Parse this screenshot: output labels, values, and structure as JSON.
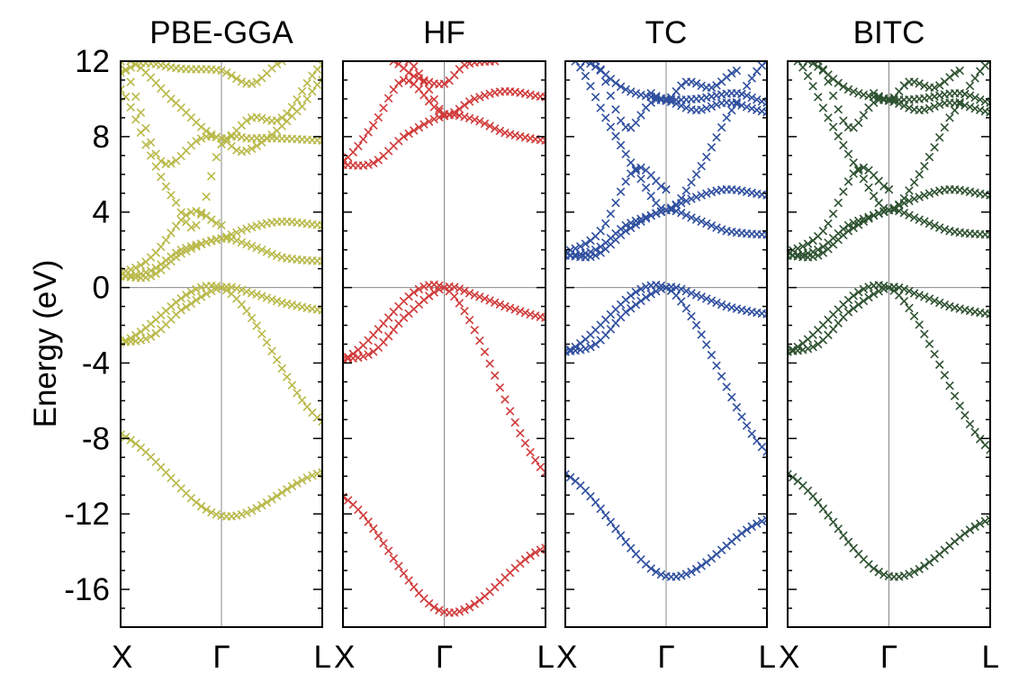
{
  "chart_data": {
    "type": "scatter",
    "description_kind": "band structure",
    "ylabel": "Energy (eV)",
    "ylim": [
      -18,
      12
    ],
    "yticks": [
      -16,
      -12,
      -8,
      -4,
      0,
      4,
      8,
      12
    ],
    "ytick_labels": [
      "-16",
      "-12",
      "-8",
      "-4",
      "0",
      "4",
      "8",
      "12"
    ],
    "xticks": [
      0,
      1,
      2
    ],
    "xtick_labels": [
      "X",
      "Γ",
      "L"
    ],
    "marker": "x",
    "grid": false,
    "reference_lines": {
      "y": 0,
      "x": 1
    },
    "panels": [
      {
        "title": "PBE-GGA",
        "color": "#b9b94a",
        "bands": [
          {
            "x": [
              0,
              1,
              2
            ],
            "y": [
              -7.8,
              -12.1,
              -9.8
            ]
          },
          {
            "x": [
              0,
              1,
              2
            ],
            "y": [
              -2.9,
              0.0,
              -7.1
            ]
          },
          {
            "x": [
              0,
              0.3,
              0.6,
              1,
              1.3,
              1.6,
              2
            ],
            "y": [
              -2.9,
              -2.6,
              -1.2,
              0.0,
              -0.3,
              -0.8,
              -1.2
            ]
          },
          {
            "x": [
              0,
              0.3,
              0.6,
              1,
              1.3,
              1.6,
              2
            ],
            "y": [
              0.6,
              0.6,
              1.8,
              2.6,
              2.2,
              1.6,
              1.4
            ]
          },
          {
            "x": [
              0,
              0.3,
              0.6,
              1,
              1.3,
              1.6,
              2
            ],
            "y": [
              0.6,
              0.9,
              2.0,
              2.6,
              3.2,
              3.5,
              3.3
            ]
          },
          {
            "x": [
              0,
              0.3,
              0.7,
              1
            ],
            "y": [
              0.8,
              1.6,
              4.0,
              3.3
            ]
          },
          {
            "x": [
              0,
              0.3,
              0.55,
              0.75,
              1,
              1.3,
              1.6,
              2
            ],
            "y": [
              10.5,
              7.0,
              4.5,
              3.3,
              7.6,
              7.9,
              7.9,
              7.8
            ]
          },
          {
            "x": [
              0,
              0.4,
              0.8,
              1,
              1.2,
              1.5,
              1.8,
              2
            ],
            "y": [
              12.0,
              6.7,
              7.9,
              7.9,
              7.2,
              8.1,
              9.6,
              11.0
            ]
          },
          {
            "x": [
              0.1,
              0.5,
              1,
              1.3,
              1.6,
              2
            ],
            "y": [
              12.0,
              10.0,
              7.9,
              9.0,
              9.0,
              11.8
            ]
          },
          {
            "x": [
              0,
              0.2,
              0.6,
              1,
              1.3,
              1.6
            ],
            "y": [
              11.4,
              11.9,
              11.6,
              11.5,
              10.8,
              12.0
            ]
          }
        ]
      },
      {
        "title": "HF",
        "color": "#d13b3b",
        "bands": [
          {
            "x": [
              0,
              1,
              2
            ],
            "y": [
              -11.1,
              -17.2,
              -13.8
            ]
          },
          {
            "x": [
              0,
              1,
              2
            ],
            "y": [
              -3.8,
              0.0,
              -9.8
            ]
          },
          {
            "x": [
              0,
              0.3,
              0.6,
              1,
              1.3,
              1.6,
              2
            ],
            "y": [
              -3.8,
              -3.4,
              -1.6,
              0.0,
              -0.4,
              -1.0,
              -1.6
            ]
          },
          {
            "x": [
              0,
              0.3,
              0.6,
              1,
              1.3,
              1.6,
              2
            ],
            "y": [
              6.5,
              6.6,
              8.0,
              9.1,
              8.9,
              8.2,
              7.8
            ]
          },
          {
            "x": [
              0,
              0.3,
              0.6,
              1,
              1.3,
              1.6,
              2
            ],
            "y": [
              6.7,
              8.6,
              11.0,
              9.2,
              10.0,
              10.4,
              10.1
            ]
          },
          {
            "x": [
              0.5,
              0.7,
              1,
              1.2,
              1.5
            ],
            "y": [
              12.0,
              11.2,
              10.8,
              11.8,
              12.0
            ]
          },
          {
            "x": [
              0.65,
              0.85,
              1
            ],
            "y": [
              12.0,
              10.5,
              9.1
            ]
          }
        ]
      },
      {
        "title": "TC",
        "color": "#2f4f9f",
        "bands": [
          {
            "x": [
              0,
              1,
              2
            ],
            "y": [
              -9.9,
              -15.3,
              -12.3
            ]
          },
          {
            "x": [
              0,
              1,
              2
            ],
            "y": [
              -3.4,
              0.0,
              -8.7
            ]
          },
          {
            "x": [
              0,
              0.3,
              0.6,
              1,
              1.3,
              1.6,
              2
            ],
            "y": [
              -3.4,
              -3.0,
              -1.3,
              0.0,
              -0.4,
              -1.0,
              -1.4
            ]
          },
          {
            "x": [
              0,
              0.3,
              0.6,
              1,
              1.3,
              1.6,
              2
            ],
            "y": [
              1.7,
              1.7,
              3.0,
              4.1,
              3.6,
              3.0,
              2.8
            ]
          },
          {
            "x": [
              0,
              0.3,
              0.6,
              1,
              1.3,
              1.6,
              2
            ],
            "y": [
              1.7,
              2.0,
              3.3,
              4.1,
              4.8,
              5.2,
              4.9
            ]
          },
          {
            "x": [
              0,
              0.35,
              0.7,
              1
            ],
            "y": [
              1.9,
              3.0,
              6.3,
              5.2
            ]
          },
          {
            "x": [
              0.1,
              0.4,
              0.7,
              1,
              1.3,
              1.6,
              2
            ],
            "y": [
              12.0,
              9.0,
              6.2,
              4.1,
              6.0,
              9.0,
              12.0
            ]
          },
          {
            "x": [
              0.3,
              0.6,
              0.85,
              1,
              1.3,
              1.6,
              2
            ],
            "y": [
              12.0,
              8.5,
              9.8,
              9.9,
              9.4,
              9.8,
              9.3
            ]
          },
          {
            "x": [
              0.2,
              0.6,
              1,
              1.3,
              1.7,
              2
            ],
            "y": [
              12.0,
              10.5,
              10.0,
              10.0,
              10.3,
              9.8
            ]
          },
          {
            "x": [
              0.85,
              1,
              1.2,
              1.45,
              1.7
            ],
            "y": [
              10.3,
              9.9,
              10.9,
              10.6,
              11.5
            ]
          }
        ]
      },
      {
        "title": "BITC",
        "color": "#2f5231",
        "bands": [
          {
            "x": [
              0,
              1,
              2
            ],
            "y": [
              -9.9,
              -15.3,
              -12.3
            ]
          },
          {
            "x": [
              0,
              1,
              2
            ],
            "y": [
              -3.4,
              0.0,
              -8.6
            ]
          },
          {
            "x": [
              0,
              0.3,
              0.6,
              1,
              1.3,
              1.6,
              2
            ],
            "y": [
              -3.4,
              -3.0,
              -1.3,
              0.0,
              -0.4,
              -1.0,
              -1.4
            ]
          },
          {
            "x": [
              0,
              0.3,
              0.6,
              1,
              1.3,
              1.6,
              2
            ],
            "y": [
              1.7,
              1.7,
              3.0,
              4.1,
              3.6,
              3.0,
              2.8
            ]
          },
          {
            "x": [
              0,
              0.3,
              0.6,
              1,
              1.3,
              1.6,
              2
            ],
            "y": [
              1.7,
              2.0,
              3.3,
              4.1,
              4.8,
              5.2,
              4.9
            ]
          },
          {
            "x": [
              0,
              0.35,
              0.7,
              1
            ],
            "y": [
              1.9,
              3.0,
              6.3,
              5.2
            ]
          },
          {
            "x": [
              0.1,
              0.4,
              0.7,
              1,
              1.3,
              1.6,
              2
            ],
            "y": [
              12.0,
              9.0,
              6.2,
              4.1,
              6.0,
              9.0,
              12.0
            ]
          },
          {
            "x": [
              0.3,
              0.6,
              0.85,
              1,
              1.3,
              1.6,
              2
            ],
            "y": [
              12.0,
              8.5,
              9.8,
              9.9,
              9.4,
              9.8,
              9.3
            ]
          },
          {
            "x": [
              0.2,
              0.6,
              1,
              1.3,
              1.7,
              2
            ],
            "y": [
              12.0,
              10.5,
              10.0,
              10.0,
              10.3,
              9.8
            ]
          },
          {
            "x": [
              0.85,
              1,
              1.2,
              1.45,
              1.7
            ],
            "y": [
              10.3,
              9.9,
              10.9,
              10.6,
              11.5
            ]
          }
        ]
      }
    ]
  }
}
